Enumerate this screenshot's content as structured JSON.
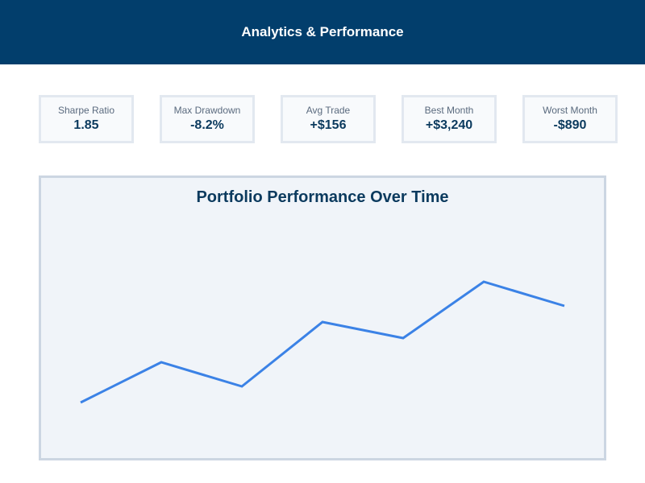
{
  "header": {
    "title": "Analytics & Performance"
  },
  "metrics": [
    {
      "label": "Sharpe Ratio",
      "value": "1.85"
    },
    {
      "label": "Max Drawdown",
      "value": "-8.2%"
    },
    {
      "label": "Avg Trade",
      "value": "+$156"
    },
    {
      "label": "Best Month",
      "value": "+$3,240"
    },
    {
      "label": "Worst Month",
      "value": "-$890"
    }
  ],
  "colors": {
    "header_bg": "#023e6c",
    "line": "#3b82e6",
    "panel_bg": "#f0f4f9",
    "panel_border": "#ccd6e2"
  },
  "chart_data": {
    "type": "line",
    "title": "Portfolio Performance Over Time",
    "xlabel": "",
    "ylabel": "",
    "x": [
      1,
      2,
      3,
      4,
      5,
      6,
      7
    ],
    "series": [
      {
        "name": "Portfolio",
        "values": [
          0,
          50,
          20,
          100,
          80,
          150,
          120
        ]
      }
    ],
    "grid": false,
    "legend": "none",
    "note": "No axes or tick labels shown; values are relative (pixel-derived)."
  }
}
